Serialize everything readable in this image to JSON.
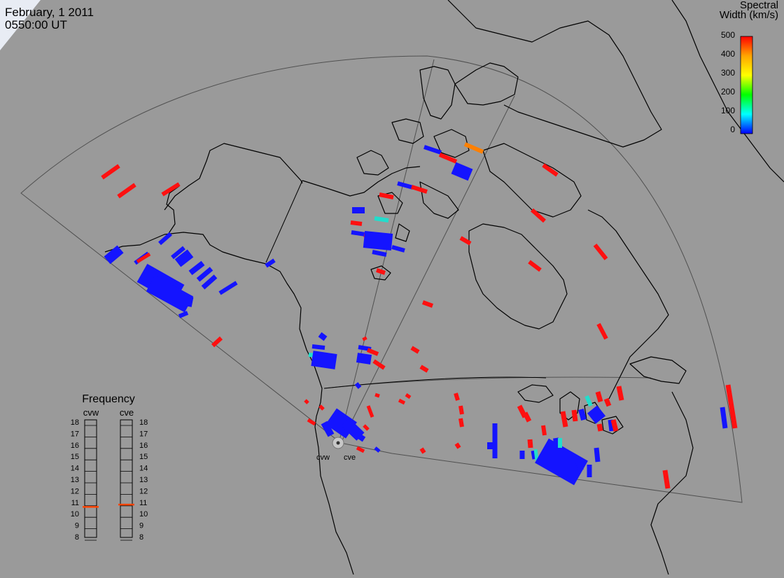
{
  "header": {
    "date": "February, 1 2011",
    "time": "0550:00 UT"
  },
  "colorbar": {
    "title_line1": "Spectral",
    "title_line2": "Width (km/s)",
    "ticks": [
      "500",
      "400",
      "300",
      "200",
      "100",
      "0"
    ],
    "stops": [
      "#ff0000",
      "#ffa500",
      "#ffff00",
      "#00ff00",
      "#00ffff",
      "#0000ff"
    ]
  },
  "frequency": {
    "title": "Frequency",
    "left_label": "cvw",
    "right_label": "cve",
    "ticks": [
      "18",
      "17",
      "16",
      "15",
      "14",
      "13",
      "12",
      "11",
      "10",
      "9",
      "8"
    ],
    "cvw_value": 10.6,
    "cve_value": 10.8,
    "marker_color": "#ff4400"
  },
  "radars": {
    "cvw_label": "cvw",
    "cve_label": "cve"
  },
  "colors": {
    "background": "#9a9a9a",
    "coast": "#000000",
    "fov": "#505050",
    "echo_blue": "#1414ff",
    "echo_red": "#ff1010",
    "echo_orange": "#ff8000",
    "echo_cyan": "#22ddcc",
    "echo_green": "#66ff33"
  }
}
